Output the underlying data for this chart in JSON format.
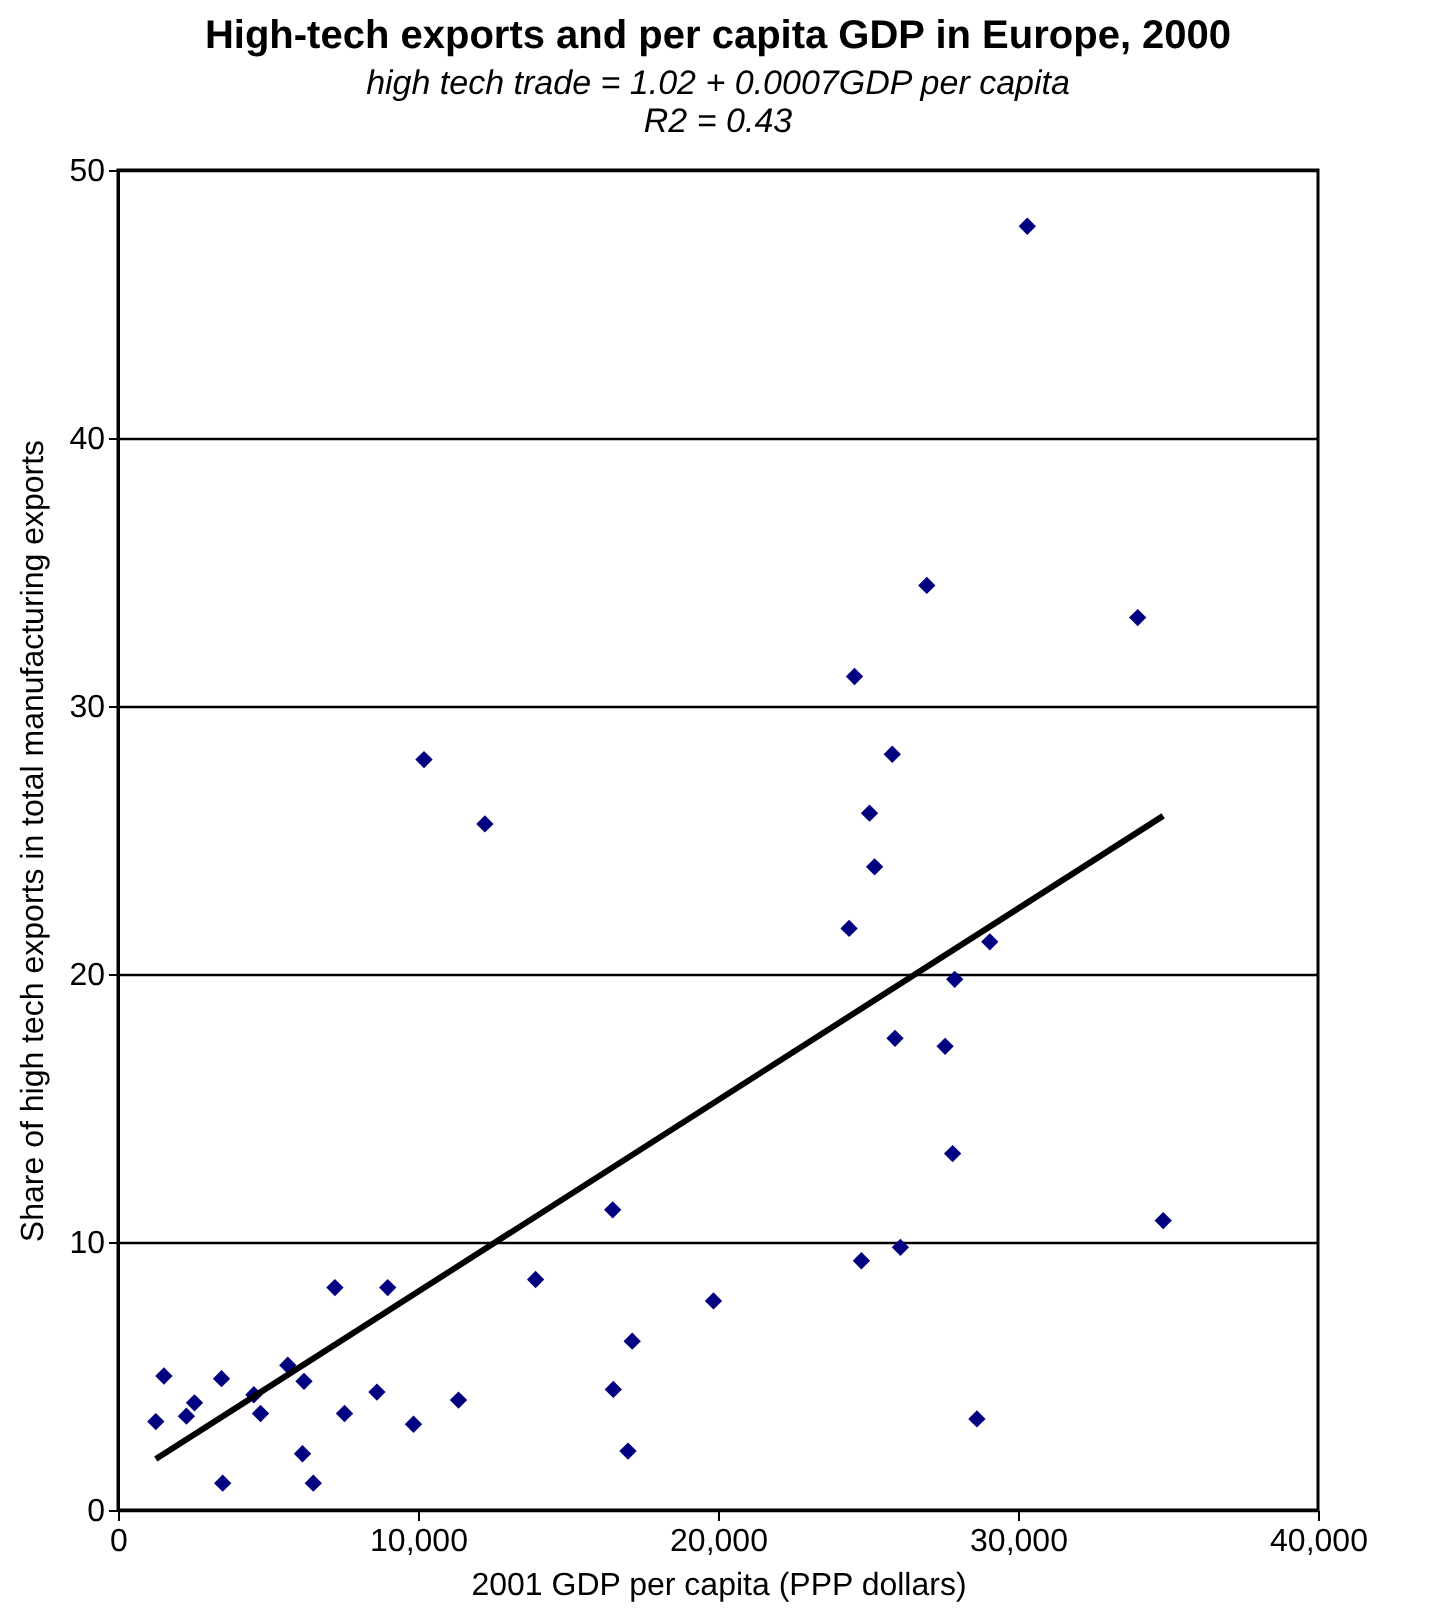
{
  "chart_data": {
    "type": "scatter",
    "title": "High-tech exports and per capita GDP in Europe, 2000",
    "subtitle": "high tech trade = 1.02 + 0.0007GDP per capita\nR2 = 0.43",
    "xlabel": "2001 GDP per capita (PPP dollars)",
    "ylabel": "Share of high tech exports in total manufacturing exports",
    "xlim": [
      0,
      40000
    ],
    "xticks": [
      0,
      {
        "value": 10000,
        "label": "10,000"
      },
      {
        "value": 20000,
        "label": "20,000"
      },
      {
        "value": 30000,
        "label": "30,000"
      },
      {
        "value": 40000,
        "label": "40,000"
      }
    ],
    "ylim": [
      0,
      50
    ],
    "yticks": [
      0,
      10,
      20,
      30,
      40,
      50
    ],
    "grid": "y",
    "series": [
      {
        "color": "#000080",
        "marker": "diamond",
        "x": [
          1260,
          1530,
          2550,
          2280,
          3450,
          3490,
          4530,
          4750,
          5660,
          6200,
          6150,
          6510,
          7230,
          7550,
          8630,
          8990,
          9850,
          11350,
          13920,
          16510,
          17140,
          17000,
          10200,
          12230,
          16490,
          19850,
          24550,
          26960,
          25810,
          25050,
          25220,
          24370,
          29060,
          27890,
          25900,
          27570,
          27820,
          24780,
          26080,
          28630,
          30310,
          33990,
          34840
        ],
        "values": [
          3.3,
          5.0,
          4.0,
          3.5,
          4.9,
          1.0,
          4.3,
          3.6,
          5.4,
          4.8,
          2.1,
          1.0,
          8.3,
          3.6,
          4.4,
          8.3,
          3.2,
          4.1,
          8.6,
          4.5,
          6.3,
          2.2,
          28.0,
          25.6,
          11.2,
          7.8,
          31.1,
          34.5,
          28.2,
          26.0,
          24.0,
          21.7,
          21.2,
          19.8,
          17.6,
          17.3,
          13.3,
          9.3,
          9.8,
          3.4,
          47.9,
          33.3,
          10.8
        ]
      },
      {
        "type": "line",
        "color": "#000000",
        "line_style": "solid",
        "x": [
          1260,
          34840
        ],
        "values": [
          1.9,
          25.9
        ]
      }
    ]
  }
}
